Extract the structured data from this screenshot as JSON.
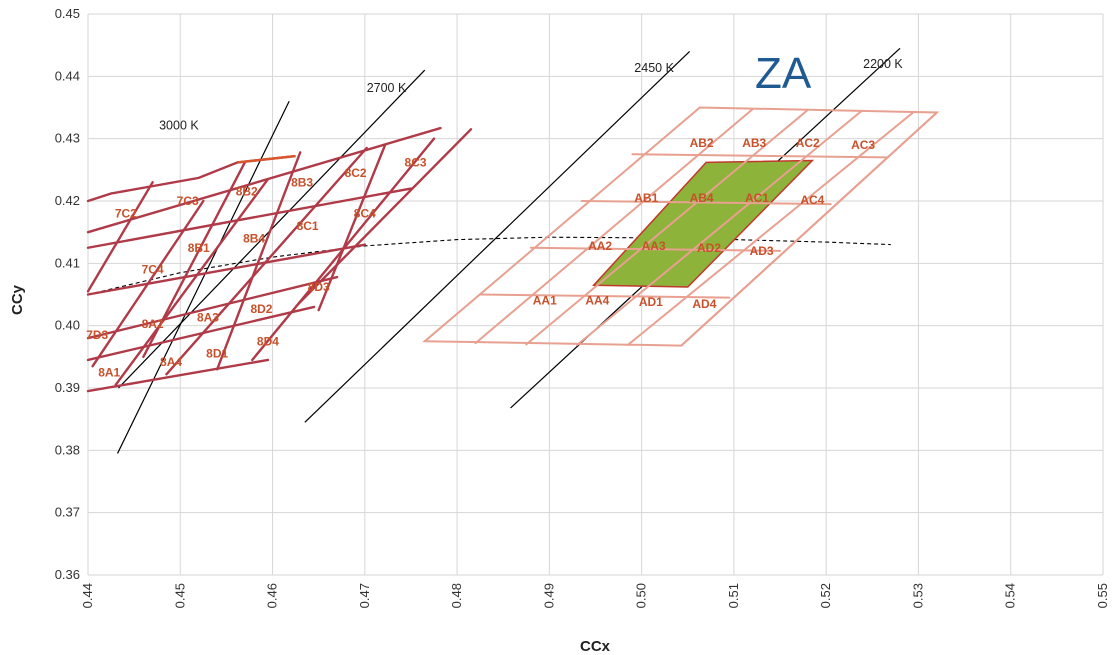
{
  "chart_data": {
    "type": "scatter",
    "title": "",
    "xlabel": "CCx",
    "ylabel": "CCy",
    "xlim": [
      0.44,
      0.55
    ],
    "ylim": [
      0.36,
      0.45
    ],
    "x_ticks": [
      "0.44",
      "0.45",
      "0.46",
      "0.47",
      "0.48",
      "0.49",
      "0.50",
      "0.51",
      "0.52",
      "0.53",
      "0.54",
      "0.55"
    ],
    "y_ticks": [
      "0.36",
      "0.37",
      "0.38",
      "0.39",
      "0.40",
      "0.41",
      "0.42",
      "0.43",
      "0.44",
      "0.45"
    ],
    "grid": true,
    "colors": {
      "left_bins": "#b03a48",
      "right_bins": "#e8a090",
      "highlight_fill": "#8db33a",
      "highlight_edge": "#c0392b",
      "label": "#c8502a",
      "cct_lines": "#000000",
      "za_label": "#1f5a91"
    },
    "series_label": "ZA",
    "cct_lines": [
      {
        "label": "3000 K",
        "from": [
          0.4432,
          0.3795
        ],
        "to": [
          0.4618,
          0.436
        ],
        "label_at": [
          0.452,
          0.4315
        ]
      },
      {
        "label": "2700 K",
        "from": [
          0.4433,
          0.39
        ],
        "to": [
          0.4765,
          0.441
        ],
        "label_at": [
          0.4745,
          0.4375
        ]
      },
      {
        "label": "2450 K",
        "from": [
          0.4635,
          0.3845
        ],
        "to": [
          0.5052,
          0.444
        ],
        "label_at": [
          0.5035,
          0.4407
        ]
      },
      {
        "label": "2200 K",
        "from": [
          0.4858,
          0.3868
        ],
        "to": [
          0.528,
          0.4445
        ],
        "label_at": [
          0.5283,
          0.4413
        ]
      }
    ],
    "blackbody_curve": {
      "style": "dashed",
      "points": [
        [
          0.44,
          0.405
        ],
        [
          0.45,
          0.4085
        ],
        [
          0.46,
          0.411
        ],
        [
          0.47,
          0.4128
        ],
        [
          0.48,
          0.4138
        ],
        [
          0.49,
          0.4142
        ],
        [
          0.5,
          0.4141
        ],
        [
          0.51,
          0.4138
        ],
        [
          0.52,
          0.4134
        ],
        [
          0.527,
          0.413
        ]
      ]
    },
    "left_quads": {
      "row_lines": [
        [
          [
            0.44,
            0.3895
          ],
          [
            0.4595,
            0.3945
          ]
        ],
        [
          [
            0.44,
            0.3945
          ],
          [
            0.4645,
            0.403
          ]
        ],
        [
          [
            0.44,
            0.398
          ],
          [
            0.467,
            0.4078
          ]
        ],
        [
          [
            0.44,
            0.405
          ],
          [
            0.47,
            0.413
          ]
        ],
        [
          [
            0.44,
            0.4125
          ],
          [
            0.475,
            0.422
          ]
        ],
        [
          [
            0.44,
            0.415
          ],
          [
            0.4782,
            0.4317
          ]
        ],
        [
          [
            0.44,
            0.42
          ],
          [
            0.4425,
            0.4212
          ]
        ]
      ],
      "col_lines": [
        [
          [
            0.443,
            0.3905
          ],
          [
            0.4595,
            0.4235
          ]
        ],
        [
          [
            0.4485,
            0.3922
          ],
          [
            0.4702,
            0.4285
          ]
        ],
        [
          [
            0.454,
            0.393
          ],
          [
            0.463,
            0.4278
          ]
        ],
        [
          [
            0.446,
            0.395
          ],
          [
            0.457,
            0.4262
          ]
        ],
        [
          [
            0.4405,
            0.3935
          ],
          [
            0.4525,
            0.42
          ]
        ],
        [
          [
            0.44,
            0.4055
          ],
          [
            0.447,
            0.423
          ]
        ],
        [
          [
            0.4578,
            0.3945
          ],
          [
            0.4775,
            0.43
          ]
        ],
        [
          [
            0.465,
            0.4025
          ],
          [
            0.4722,
            0.429
          ]
        ],
        [
          [
            0.4628,
            0.4035
          ],
          [
            0.4815,
            0.4315
          ]
        ]
      ],
      "top_edge": [
        [
          0.4425,
          0.4212
        ],
        [
          0.452,
          0.4237
        ],
        [
          0.4562,
          0.4262
        ],
        [
          0.4625,
          0.4272
        ]
      ],
      "top_edge_orange": [
        [
          0.4562,
          0.4262
        ],
        [
          0.4625,
          0.4272
        ]
      ]
    },
    "right_quads": {
      "outline": [
        [
          0.4765,
          0.3975
        ],
        [
          0.5043,
          0.3968
        ],
        [
          0.532,
          0.4342
        ],
        [
          0.5063,
          0.435
        ]
      ],
      "row_lines": [
        [
          [
            0.4825,
            0.405
          ],
          [
            0.5095,
            0.4045
          ]
        ],
        [
          [
            0.488,
            0.4125
          ],
          [
            0.515,
            0.412
          ]
        ],
        [
          [
            0.4935,
            0.42
          ],
          [
            0.5205,
            0.4195
          ]
        ],
        [
          [
            0.499,
            0.4275
          ],
          [
            0.5265,
            0.427
          ]
        ]
      ],
      "col_lines": [
        [
          [
            0.482,
            0.3972
          ],
          [
            0.512,
            0.4347
          ]
        ],
        [
          [
            0.4875,
            0.397
          ],
          [
            0.518,
            0.4346
          ]
        ],
        [
          [
            0.493,
            0.3969
          ],
          [
            0.5238,
            0.4344
          ]
        ],
        [
          [
            0.4985,
            0.3969
          ],
          [
            0.5295,
            0.4343
          ]
        ],
        [
          [
            0.5043,
            0.3968
          ],
          [
            0.532,
            0.4342
          ]
        ]
      ],
      "highlight_polygon": [
        [
          0.4948,
          0.4065
        ],
        [
          0.505,
          0.4062
        ],
        [
          0.5185,
          0.4265
        ],
        [
          0.507,
          0.4262
        ]
      ]
    },
    "bin_labels": [
      {
        "text": "7C2",
        "x": 0.4441,
        "y": 0.418
      },
      {
        "text": "7C3",
        "x": 0.4508,
        "y": 0.42
      },
      {
        "text": "8B2",
        "x": 0.4572,
        "y": 0.4215
      },
      {
        "text": "8B3",
        "x": 0.4632,
        "y": 0.423
      },
      {
        "text": "8C2",
        "x": 0.469,
        "y": 0.4245
      },
      {
        "text": "8C3",
        "x": 0.4755,
        "y": 0.4262
      },
      {
        "text": "7C4",
        "x": 0.447,
        "y": 0.409
      },
      {
        "text": "8B1",
        "x": 0.452,
        "y": 0.4125
      },
      {
        "text": "8B4",
        "x": 0.458,
        "y": 0.414
      },
      {
        "text": "8C1",
        "x": 0.4638,
        "y": 0.416
      },
      {
        "text": "8C4",
        "x": 0.47,
        "y": 0.418
      },
      {
        "text": "8A2",
        "x": 0.447,
        "y": 0.4003
      },
      {
        "text": "8A3",
        "x": 0.453,
        "y": 0.4013
      },
      {
        "text": "8D2",
        "x": 0.4588,
        "y": 0.4027
      },
      {
        "text": "8D3",
        "x": 0.465,
        "y": 0.4062
      },
      {
        "text": "7D3",
        "x": 0.441,
        "y": 0.3985
      },
      {
        "text": "8A1",
        "x": 0.4423,
        "y": 0.3925
      },
      {
        "text": "8A4",
        "x": 0.449,
        "y": 0.3942
      },
      {
        "text": "8D1",
        "x": 0.454,
        "y": 0.3955
      },
      {
        "text": "8D4",
        "x": 0.4595,
        "y": 0.3975
      },
      {
        "text": "AB2",
        "x": 0.5065,
        "y": 0.4293
      },
      {
        "text": "AB3",
        "x": 0.5122,
        "y": 0.4293
      },
      {
        "text": "AC2",
        "x": 0.518,
        "y": 0.4293
      },
      {
        "text": "AC3",
        "x": 0.524,
        "y": 0.429
      },
      {
        "text": "AB1",
        "x": 0.5005,
        "y": 0.4205
      },
      {
        "text": "AB4",
        "x": 0.5065,
        "y": 0.4205
      },
      {
        "text": "AC1",
        "x": 0.5125,
        "y": 0.4205
      },
      {
        "text": "AC4",
        "x": 0.5185,
        "y": 0.4202
      },
      {
        "text": "AA2",
        "x": 0.4955,
        "y": 0.4128
      },
      {
        "text": "AA3",
        "x": 0.5013,
        "y": 0.4128
      },
      {
        "text": "AD2",
        "x": 0.5073,
        "y": 0.4125
      },
      {
        "text": "AD3",
        "x": 0.513,
        "y": 0.412
      },
      {
        "text": "AA1",
        "x": 0.4895,
        "y": 0.404
      },
      {
        "text": "AA4",
        "x": 0.4952,
        "y": 0.404
      },
      {
        "text": "AD1",
        "x": 0.501,
        "y": 0.4038
      },
      {
        "text": "AD4",
        "x": 0.5068,
        "y": 0.4035
      }
    ]
  }
}
